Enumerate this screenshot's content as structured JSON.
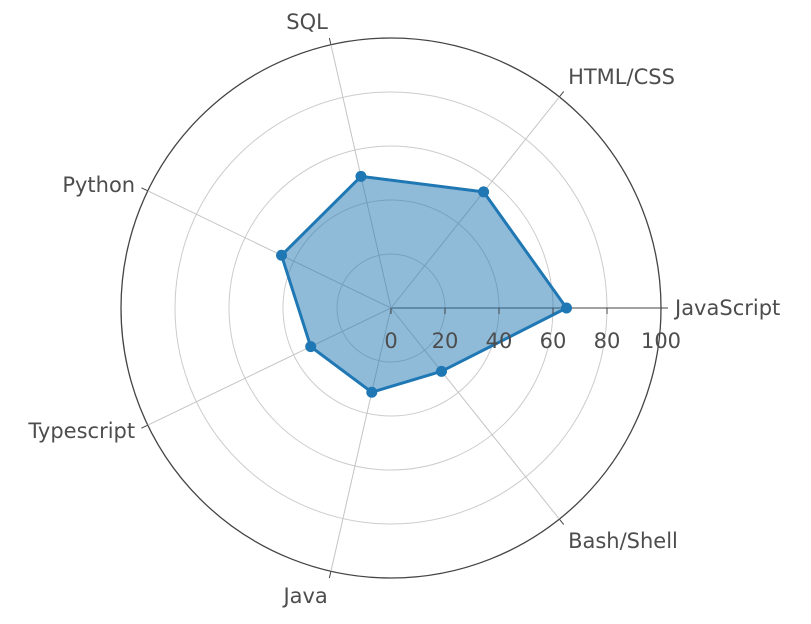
{
  "chart_data": {
    "type": "radar",
    "title": "",
    "categories": [
      "JavaScript",
      "HTML/CSS",
      "SQL",
      "Python",
      "Typescript",
      "Java",
      "Bash/Shell"
    ],
    "series": [
      {
        "values": [
          65,
          55,
          50,
          45,
          33,
          32,
          30
        ],
        "color": "#1f77b4",
        "fill": "#1f77b4"
      }
    ],
    "radial_range": [
      0,
      100
    ],
    "radial_ticks": [
      0,
      20,
      40,
      60,
      80,
      100
    ],
    "grid": true
  }
}
